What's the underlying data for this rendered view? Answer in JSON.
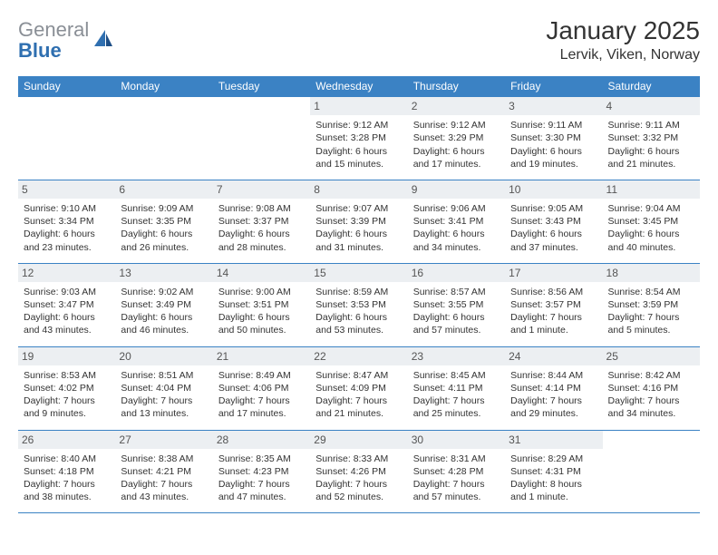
{
  "logo": {
    "text1": "General",
    "text2": "Blue",
    "color_gray": "#8a8f96",
    "color_blue": "#2f6fb0"
  },
  "title": "January 2025",
  "location": "Lervik, Viken, Norway",
  "colors": {
    "header_bg": "#3b82c4",
    "header_text": "#ffffff",
    "border": "#3b82c4",
    "daynum_bg": "#eceff2",
    "body_text": "#333333"
  },
  "weekdays": [
    "Sunday",
    "Monday",
    "Tuesday",
    "Wednesday",
    "Thursday",
    "Friday",
    "Saturday"
  ],
  "weeks": [
    [
      {
        "n": "",
        "lines": []
      },
      {
        "n": "",
        "lines": []
      },
      {
        "n": "",
        "lines": []
      },
      {
        "n": "1",
        "lines": [
          "Sunrise: 9:12 AM",
          "Sunset: 3:28 PM",
          "Daylight: 6 hours",
          "and 15 minutes."
        ]
      },
      {
        "n": "2",
        "lines": [
          "Sunrise: 9:12 AM",
          "Sunset: 3:29 PM",
          "Daylight: 6 hours",
          "and 17 minutes."
        ]
      },
      {
        "n": "3",
        "lines": [
          "Sunrise: 9:11 AM",
          "Sunset: 3:30 PM",
          "Daylight: 6 hours",
          "and 19 minutes."
        ]
      },
      {
        "n": "4",
        "lines": [
          "Sunrise: 9:11 AM",
          "Sunset: 3:32 PM",
          "Daylight: 6 hours",
          "and 21 minutes."
        ]
      }
    ],
    [
      {
        "n": "5",
        "lines": [
          "Sunrise: 9:10 AM",
          "Sunset: 3:34 PM",
          "Daylight: 6 hours",
          "and 23 minutes."
        ]
      },
      {
        "n": "6",
        "lines": [
          "Sunrise: 9:09 AM",
          "Sunset: 3:35 PM",
          "Daylight: 6 hours",
          "and 26 minutes."
        ]
      },
      {
        "n": "7",
        "lines": [
          "Sunrise: 9:08 AM",
          "Sunset: 3:37 PM",
          "Daylight: 6 hours",
          "and 28 minutes."
        ]
      },
      {
        "n": "8",
        "lines": [
          "Sunrise: 9:07 AM",
          "Sunset: 3:39 PM",
          "Daylight: 6 hours",
          "and 31 minutes."
        ]
      },
      {
        "n": "9",
        "lines": [
          "Sunrise: 9:06 AM",
          "Sunset: 3:41 PM",
          "Daylight: 6 hours",
          "and 34 minutes."
        ]
      },
      {
        "n": "10",
        "lines": [
          "Sunrise: 9:05 AM",
          "Sunset: 3:43 PM",
          "Daylight: 6 hours",
          "and 37 minutes."
        ]
      },
      {
        "n": "11",
        "lines": [
          "Sunrise: 9:04 AM",
          "Sunset: 3:45 PM",
          "Daylight: 6 hours",
          "and 40 minutes."
        ]
      }
    ],
    [
      {
        "n": "12",
        "lines": [
          "Sunrise: 9:03 AM",
          "Sunset: 3:47 PM",
          "Daylight: 6 hours",
          "and 43 minutes."
        ]
      },
      {
        "n": "13",
        "lines": [
          "Sunrise: 9:02 AM",
          "Sunset: 3:49 PM",
          "Daylight: 6 hours",
          "and 46 minutes."
        ]
      },
      {
        "n": "14",
        "lines": [
          "Sunrise: 9:00 AM",
          "Sunset: 3:51 PM",
          "Daylight: 6 hours",
          "and 50 minutes."
        ]
      },
      {
        "n": "15",
        "lines": [
          "Sunrise: 8:59 AM",
          "Sunset: 3:53 PM",
          "Daylight: 6 hours",
          "and 53 minutes."
        ]
      },
      {
        "n": "16",
        "lines": [
          "Sunrise: 8:57 AM",
          "Sunset: 3:55 PM",
          "Daylight: 6 hours",
          "and 57 minutes."
        ]
      },
      {
        "n": "17",
        "lines": [
          "Sunrise: 8:56 AM",
          "Sunset: 3:57 PM",
          "Daylight: 7 hours",
          "and 1 minute."
        ]
      },
      {
        "n": "18",
        "lines": [
          "Sunrise: 8:54 AM",
          "Sunset: 3:59 PM",
          "Daylight: 7 hours",
          "and 5 minutes."
        ]
      }
    ],
    [
      {
        "n": "19",
        "lines": [
          "Sunrise: 8:53 AM",
          "Sunset: 4:02 PM",
          "Daylight: 7 hours",
          "and 9 minutes."
        ]
      },
      {
        "n": "20",
        "lines": [
          "Sunrise: 8:51 AM",
          "Sunset: 4:04 PM",
          "Daylight: 7 hours",
          "and 13 minutes."
        ]
      },
      {
        "n": "21",
        "lines": [
          "Sunrise: 8:49 AM",
          "Sunset: 4:06 PM",
          "Daylight: 7 hours",
          "and 17 minutes."
        ]
      },
      {
        "n": "22",
        "lines": [
          "Sunrise: 8:47 AM",
          "Sunset: 4:09 PM",
          "Daylight: 7 hours",
          "and 21 minutes."
        ]
      },
      {
        "n": "23",
        "lines": [
          "Sunrise: 8:45 AM",
          "Sunset: 4:11 PM",
          "Daylight: 7 hours",
          "and 25 minutes."
        ]
      },
      {
        "n": "24",
        "lines": [
          "Sunrise: 8:44 AM",
          "Sunset: 4:14 PM",
          "Daylight: 7 hours",
          "and 29 minutes."
        ]
      },
      {
        "n": "25",
        "lines": [
          "Sunrise: 8:42 AM",
          "Sunset: 4:16 PM",
          "Daylight: 7 hours",
          "and 34 minutes."
        ]
      }
    ],
    [
      {
        "n": "26",
        "lines": [
          "Sunrise: 8:40 AM",
          "Sunset: 4:18 PM",
          "Daylight: 7 hours",
          "and 38 minutes."
        ]
      },
      {
        "n": "27",
        "lines": [
          "Sunrise: 8:38 AM",
          "Sunset: 4:21 PM",
          "Daylight: 7 hours",
          "and 43 minutes."
        ]
      },
      {
        "n": "28",
        "lines": [
          "Sunrise: 8:35 AM",
          "Sunset: 4:23 PM",
          "Daylight: 7 hours",
          "and 47 minutes."
        ]
      },
      {
        "n": "29",
        "lines": [
          "Sunrise: 8:33 AM",
          "Sunset: 4:26 PM",
          "Daylight: 7 hours",
          "and 52 minutes."
        ]
      },
      {
        "n": "30",
        "lines": [
          "Sunrise: 8:31 AM",
          "Sunset: 4:28 PM",
          "Daylight: 7 hours",
          "and 57 minutes."
        ]
      },
      {
        "n": "31",
        "lines": [
          "Sunrise: 8:29 AM",
          "Sunset: 4:31 PM",
          "Daylight: 8 hours",
          "and 1 minute."
        ]
      },
      {
        "n": "",
        "lines": []
      }
    ]
  ]
}
